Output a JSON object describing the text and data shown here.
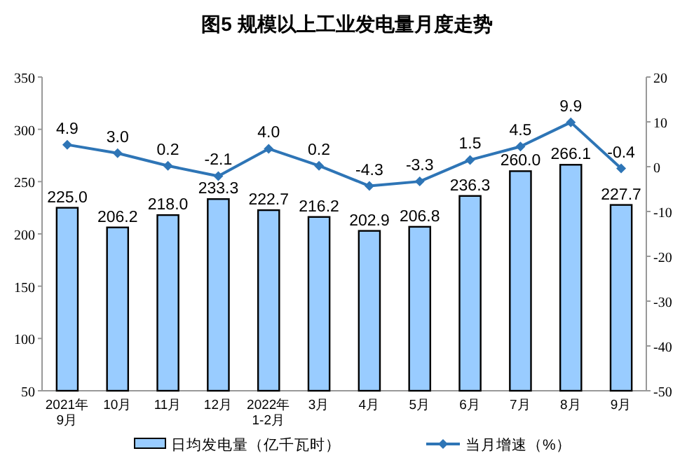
{
  "chart_data": {
    "type": "bar",
    "title": "图5  规模以上工业发电量月度走势",
    "categories": [
      "2021年\n9月",
      "10月",
      "11月",
      "12月",
      "2022年\n1-2月",
      "3月",
      "4月",
      "5月",
      "6月",
      "7月",
      "8月",
      "9月"
    ],
    "series": [
      {
        "name": "日均发电量（亿千瓦时）",
        "color": "#99ccff",
        "values": [
          225.0,
          206.2,
          218.0,
          233.3,
          222.7,
          216.2,
          202.9,
          206.8,
          236.3,
          260.0,
          266.1,
          227.7
        ],
        "value_labels": [
          "225.0",
          "206.2",
          "218.0",
          "233.3",
          "222.7",
          "216.2",
          "202.9",
          "206.8",
          "236.3",
          "260.0",
          "266.1",
          "227.7"
        ]
      },
      {
        "name": "当月增速（%）",
        "type": "line",
        "axis": "y2",
        "color": "#2e75b6",
        "values": [
          4.9,
          3.0,
          0.2,
          -2.1,
          4.0,
          0.2,
          -4.3,
          -3.3,
          1.5,
          4.5,
          9.9,
          -0.4
        ],
        "value_labels": [
          "4.9",
          "3.0",
          "0.2",
          "-2.1",
          "4.0",
          "0.2",
          "-4.3",
          "-3.3",
          "1.5",
          "4.5",
          "9.9",
          "-0.4"
        ]
      }
    ],
    "ylim": [
      50,
      350
    ],
    "yticks": [
      50,
      100,
      150,
      200,
      250,
      300,
      350
    ],
    "y2lim": [
      -50,
      20
    ],
    "y2ticks": [
      -50,
      -40,
      -30,
      -20,
      -10,
      0,
      10,
      20
    ],
    "marker": "diamond",
    "legend": "bottom",
    "grid": false
  }
}
